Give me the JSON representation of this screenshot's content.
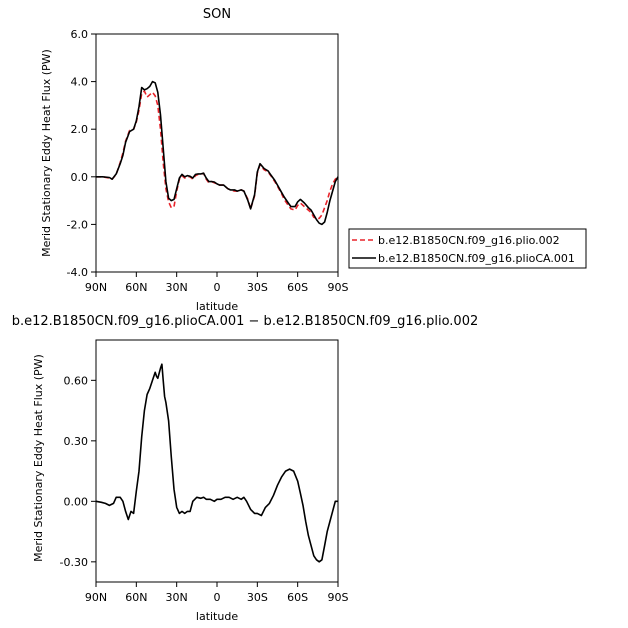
{
  "chart_data": [
    {
      "type": "line",
      "title": "SON",
      "xlabel": "latitude",
      "ylabel": "Merid Stationary Eddy Heat Flux (PW)",
      "xlim": [
        90,
        -90
      ],
      "ylim": [
        -4.0,
        6.0
      ],
      "x_ticks": [
        90,
        60,
        30,
        0,
        -30,
        -60,
        -90
      ],
      "x_tick_labels": [
        "90N",
        "60N",
        "30N",
        "0",
        "30S",
        "60S",
        "90S"
      ],
      "y_ticks": [
        -4.0,
        -2.0,
        0.0,
        2.0,
        4.0,
        6.0
      ],
      "y_tick_labels": [
        "-4.0",
        "-2.0",
        "0.0",
        "2.0",
        "4.0",
        "6.0"
      ],
      "legend": "outside-right",
      "series": [
        {
          "name": "b.e12.B1850CN.f09_g16.plio.002",
          "color": "#e8232a",
          "dash": "dashed",
          "x": [
            90,
            85,
            80,
            78,
            75,
            72,
            70,
            68,
            65,
            62,
            60,
            58,
            56,
            54,
            52,
            50,
            48,
            46,
            44,
            42,
            40,
            38,
            36,
            34,
            32,
            30,
            28,
            26,
            24,
            22,
            20,
            18,
            16,
            14,
            12,
            10,
            8,
            6,
            4,
            2,
            0,
            -2,
            -5,
            -8,
            -10,
            -13,
            -15,
            -18,
            -20,
            -23,
            -25,
            -28,
            -30,
            -32,
            -35,
            -38,
            -40,
            -43,
            -45,
            -48,
            -50,
            -53,
            -55,
            -58,
            -60,
            -62,
            -65,
            -68,
            -70,
            -72,
            -74,
            -76,
            -78,
            -80,
            -82,
            -84,
            -86,
            -88,
            -90
          ],
          "y": [
            0.0,
            0.0,
            -0.05,
            -0.1,
            0.1,
            0.6,
            1.0,
            1.5,
            1.95,
            2.0,
            2.3,
            2.8,
            3.5,
            3.6,
            3.35,
            3.45,
            3.55,
            3.4,
            3.0,
            2.0,
            0.6,
            -0.5,
            -1.05,
            -1.3,
            -1.25,
            -0.6,
            -0.1,
            0.05,
            -0.05,
            0.0,
            0.0,
            -0.1,
            0.05,
            0.1,
            0.1,
            0.15,
            -0.1,
            -0.25,
            -0.2,
            -0.25,
            -0.3,
            -0.35,
            -0.35,
            -0.5,
            -0.55,
            -0.6,
            -0.6,
            -0.55,
            -0.6,
            -0.95,
            -1.35,
            -0.8,
            0.15,
            0.5,
            0.3,
            0.2,
            0.05,
            -0.2,
            -0.4,
            -0.7,
            -0.95,
            -1.2,
            -1.35,
            -1.4,
            -1.2,
            -1.1,
            -1.25,
            -1.4,
            -1.5,
            -1.7,
            -1.75,
            -1.75,
            -1.6,
            -1.3,
            -1.0,
            -0.6,
            -0.3,
            -0.1,
            0.0
          ]
        },
        {
          "name": "b.e12.B1850CN.f09_g16.plioCA.001",
          "color": "#000000",
          "dash": "solid",
          "x": [
            90,
            85,
            80,
            78,
            75,
            72,
            70,
            68,
            65,
            62,
            60,
            58,
            56,
            54,
            52,
            50,
            48,
            46,
            44,
            42,
            40,
            38,
            36,
            34,
            32,
            30,
            28,
            26,
            24,
            22,
            20,
            18,
            16,
            14,
            12,
            10,
            8,
            6,
            4,
            2,
            0,
            -2,
            -5,
            -8,
            -10,
            -13,
            -15,
            -18,
            -20,
            -23,
            -25,
            -28,
            -30,
            -32,
            -35,
            -38,
            -40,
            -43,
            -45,
            -48,
            -50,
            -53,
            -55,
            -58,
            -60,
            -62,
            -65,
            -68,
            -70,
            -72,
            -74,
            -76,
            -78,
            -80,
            -82,
            -84,
            -86,
            -88,
            -90
          ],
          "y": [
            0.0,
            0.0,
            -0.03,
            -0.1,
            0.12,
            0.55,
            0.9,
            1.45,
            1.9,
            2.0,
            2.35,
            2.95,
            3.75,
            3.65,
            3.7,
            3.8,
            4.0,
            3.95,
            3.55,
            2.6,
            1.2,
            -0.2,
            -0.9,
            -1.0,
            -0.95,
            -0.5,
            -0.05,
            0.1,
            0.0,
            0.05,
            0.02,
            -0.05,
            0.1,
            0.12,
            0.12,
            0.15,
            -0.05,
            -0.2,
            -0.2,
            -0.22,
            -0.3,
            -0.35,
            -0.35,
            -0.5,
            -0.55,
            -0.55,
            -0.6,
            -0.55,
            -0.6,
            -1.0,
            -1.35,
            -0.75,
            0.2,
            0.55,
            0.35,
            0.25,
            0.08,
            -0.15,
            -0.35,
            -0.65,
            -0.85,
            -1.1,
            -1.25,
            -1.25,
            -1.05,
            -0.95,
            -1.1,
            -1.3,
            -1.4,
            -1.6,
            -1.8,
            -1.95,
            -2.0,
            -1.9,
            -1.5,
            -1.0,
            -0.6,
            -0.2,
            0.0
          ]
        }
      ]
    },
    {
      "type": "line",
      "title": "b.e12.B1850CN.f09_g16.plioCA.001 − b.e12.B1850CN.f09_g16.plio.002",
      "xlabel": "latitude",
      "ylabel": "Merid Stationary Eddy Heat Flux (PW)",
      "xlim": [
        90,
        -90
      ],
      "ylim": [
        -0.4,
        0.8
      ],
      "x_ticks": [
        90,
        60,
        30,
        0,
        -30,
        -60,
        -90
      ],
      "x_tick_labels": [
        "90N",
        "60N",
        "30N",
        "0",
        "30S",
        "60S",
        "90S"
      ],
      "y_ticks": [
        -0.3,
        0.0,
        0.3,
        0.6
      ],
      "y_tick_labels": [
        "-0.30",
        "0.00",
        "0.30",
        "0.60"
      ],
      "series": [
        {
          "color": "#000000",
          "dash": "solid",
          "x": [
            90,
            86,
            83,
            80,
            77,
            75,
            72,
            70,
            68,
            66,
            64,
            62,
            60,
            58,
            56,
            54,
            52,
            50,
            48,
            46,
            45,
            44,
            42,
            41,
            40,
            39,
            38,
            36,
            34,
            32,
            30,
            28,
            26,
            24,
            22,
            20,
            18,
            15,
            12,
            10,
            8,
            5,
            2,
            0,
            -3,
            -6,
            -9,
            -12,
            -15,
            -18,
            -20,
            -22,
            -25,
            -28,
            -30,
            -33,
            -36,
            -39,
            -42,
            -45,
            -48,
            -51,
            -54,
            -57,
            -60,
            -62,
            -64,
            -66,
            -68,
            -70,
            -72,
            -74,
            -76,
            -78,
            -80,
            -82,
            -84,
            -86,
            -88,
            -90
          ],
          "y": [
            0.0,
            -0.005,
            -0.01,
            -0.02,
            -0.01,
            0.02,
            0.02,
            0.0,
            -0.05,
            -0.09,
            -0.05,
            -0.06,
            0.05,
            0.15,
            0.32,
            0.45,
            0.53,
            0.56,
            0.6,
            0.64,
            0.62,
            0.61,
            0.66,
            0.68,
            0.6,
            0.52,
            0.49,
            0.4,
            0.22,
            0.06,
            -0.03,
            -0.06,
            -0.05,
            -0.06,
            -0.05,
            -0.05,
            0.0,
            0.02,
            0.015,
            0.02,
            0.01,
            0.01,
            0.0,
            0.01,
            0.01,
            0.02,
            0.02,
            0.01,
            0.02,
            0.01,
            0.02,
            0.0,
            -0.04,
            -0.06,
            -0.06,
            -0.07,
            -0.03,
            -0.01,
            0.03,
            0.08,
            0.12,
            0.15,
            0.16,
            0.15,
            0.1,
            0.04,
            -0.02,
            -0.1,
            -0.17,
            -0.22,
            -0.27,
            -0.29,
            -0.3,
            -0.29,
            -0.22,
            -0.15,
            -0.1,
            -0.05,
            0.0,
            0.0
          ]
        }
      ]
    }
  ]
}
